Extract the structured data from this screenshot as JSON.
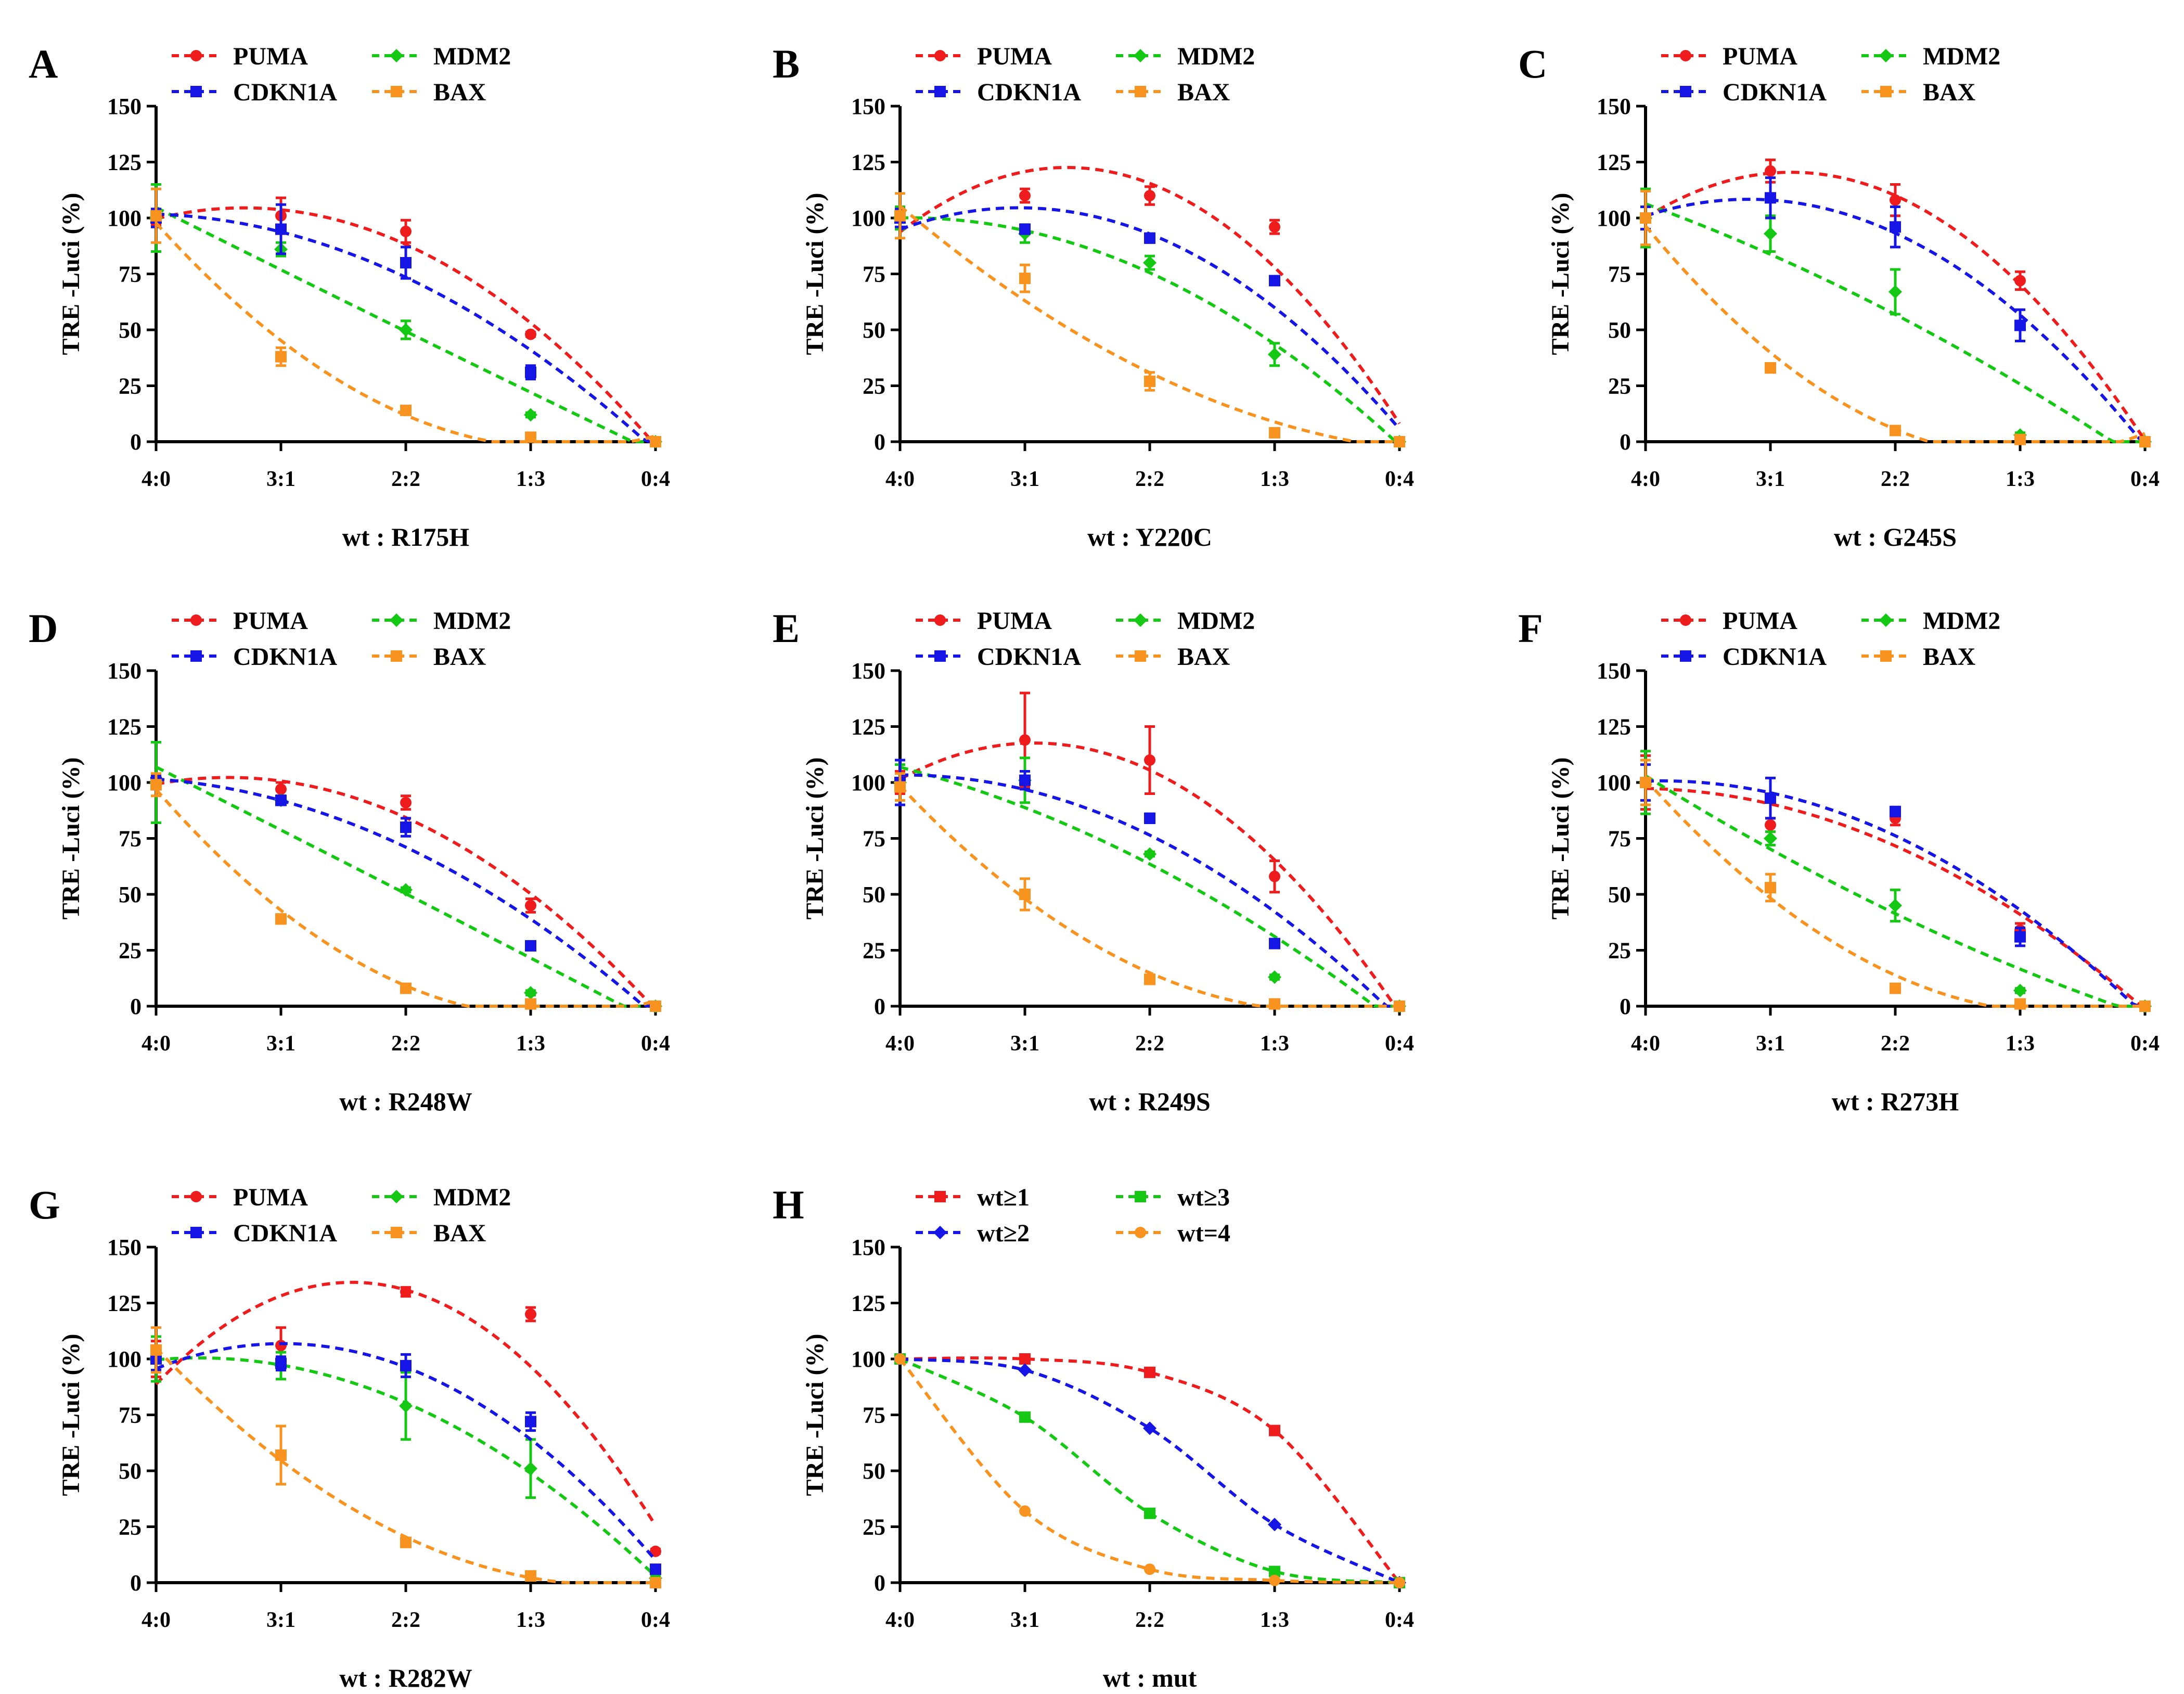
{
  "figure": {
    "x_categories": [
      "4:0",
      "3:1",
      "2:2",
      "1:3",
      "0:4"
    ],
    "ylabel": "TRE -Luci (%)",
    "yticks": [
      "0",
      "25",
      "50",
      "75",
      "100",
      "125",
      "150"
    ],
    "ylim": [
      0,
      150
    ]
  },
  "colors": {
    "red": "#ee1c1c",
    "green": "#14c814",
    "blue": "#1515e6",
    "orange": "#f7931e"
  },
  "chart_data": [
    {
      "type": "scatter",
      "panel": "A",
      "xlabel": "wt : R175H",
      "ylabel": "TRE -Luci (%)",
      "ylim": [
        0,
        150
      ],
      "categories": [
        "4:0",
        "3:1",
        "2:2",
        "1:3",
        "0:4"
      ],
      "series": [
        {
          "name": "PUMA",
          "color": "#ee1c1c",
          "marker": "circle",
          "values": [
            100,
            101,
            94,
            48,
            0
          ],
          "errors": [
            3,
            8,
            5,
            1,
            1
          ]
        },
        {
          "name": "MDM2",
          "color": "#14c814",
          "marker": "diamond",
          "values": [
            100,
            86,
            50,
            12,
            0
          ],
          "errors": [
            15,
            3,
            4,
            1,
            1
          ]
        },
        {
          "name": "CDKN1A",
          "color": "#1515e6",
          "marker": "square",
          "values": [
            100,
            95,
            80,
            31,
            0
          ],
          "errors": [
            4,
            11,
            7,
            3,
            1
          ]
        },
        {
          "name": "BAX",
          "color": "#f7931e",
          "marker": "square",
          "values": [
            101,
            38,
            14,
            2,
            0
          ],
          "errors": [
            12,
            4,
            1,
            1,
            1
          ]
        }
      ]
    },
    {
      "type": "scatter",
      "panel": "B",
      "xlabel": "wt : Y220C",
      "ylabel": "TRE -Luci (%)",
      "ylim": [
        0,
        150
      ],
      "categories": [
        "4:0",
        "3:1",
        "2:2",
        "1:3",
        "0:4"
      ],
      "series": [
        {
          "name": "PUMA",
          "color": "#ee1c1c",
          "marker": "circle",
          "values": [
            100,
            110,
            110,
            96,
            0
          ],
          "errors": [
            5,
            3,
            4,
            3,
            1
          ]
        },
        {
          "name": "MDM2",
          "color": "#14c814",
          "marker": "diamond",
          "values": [
            100,
            93,
            80,
            39,
            0
          ],
          "errors": [
            5,
            4,
            3,
            5,
            1
          ]
        },
        {
          "name": "CDKN1A",
          "color": "#1515e6",
          "marker": "square",
          "values": [
            100,
            95,
            91,
            72,
            0
          ],
          "errors": [
            4,
            2,
            2,
            1,
            1
          ]
        },
        {
          "name": "BAX",
          "color": "#f7931e",
          "marker": "square",
          "values": [
            101,
            73,
            27,
            4,
            0
          ],
          "errors": [
            10,
            6,
            4,
            1,
            1
          ]
        }
      ]
    },
    {
      "type": "scatter",
      "panel": "C",
      "xlabel": "wt : G245S",
      "ylabel": "TRE -Luci (%)",
      "ylim": [
        0,
        150
      ],
      "categories": [
        "4:0",
        "3:1",
        "2:2",
        "1:3",
        "0:4"
      ],
      "series": [
        {
          "name": "PUMA",
          "color": "#ee1c1c",
          "marker": "circle",
          "values": [
            100,
            121,
            108,
            72,
            0
          ],
          "errors": [
            5,
            5,
            7,
            4,
            1
          ]
        },
        {
          "name": "MDM2",
          "color": "#14c814",
          "marker": "diamond",
          "values": [
            100,
            93,
            67,
            3,
            0
          ],
          "errors": [
            13,
            8,
            10,
            1,
            1
          ]
        },
        {
          "name": "CDKN1A",
          "color": "#1515e6",
          "marker": "square",
          "values": [
            100,
            109,
            96,
            52,
            0
          ],
          "errors": [
            5,
            9,
            9,
            7,
            1
          ]
        },
        {
          "name": "BAX",
          "color": "#f7931e",
          "marker": "square",
          "values": [
            100,
            33,
            5,
            1,
            0
          ],
          "errors": [
            12,
            2,
            1,
            1,
            1
          ]
        }
      ]
    },
    {
      "type": "scatter",
      "panel": "D",
      "xlabel": "wt : R248W",
      "ylabel": "TRE -Luci (%)",
      "ylim": [
        0,
        150
      ],
      "categories": [
        "4:0",
        "3:1",
        "2:2",
        "1:3",
        "0:4"
      ],
      "series": [
        {
          "name": "PUMA",
          "color": "#ee1c1c",
          "marker": "circle",
          "values": [
            100,
            97,
            91,
            45,
            0
          ],
          "errors": [
            3,
            3,
            3,
            3,
            1
          ]
        },
        {
          "name": "MDM2",
          "color": "#14c814",
          "marker": "diamond",
          "values": [
            100,
            92,
            52,
            6,
            0
          ],
          "errors": [
            18,
            2,
            1,
            1,
            1
          ]
        },
        {
          "name": "CDKN1A",
          "color": "#1515e6",
          "marker": "square",
          "values": [
            100,
            92,
            80,
            27,
            0
          ],
          "errors": [
            3,
            2,
            4,
            1,
            1
          ]
        },
        {
          "name": "BAX",
          "color": "#f7931e",
          "marker": "square",
          "values": [
            99,
            39,
            8,
            1,
            0
          ],
          "errors": [
            5,
            2,
            1,
            1,
            1
          ]
        }
      ]
    },
    {
      "type": "scatter",
      "panel": "E",
      "xlabel": "wt : R249S",
      "ylabel": "TRE -Luci (%)",
      "ylim": [
        0,
        150
      ],
      "categories": [
        "4:0",
        "3:1",
        "2:2",
        "1:3",
        "0:4"
      ],
      "series": [
        {
          "name": "PUMA",
          "color": "#ee1c1c",
          "marker": "circle",
          "values": [
            100,
            119,
            110,
            58,
            0
          ],
          "errors": [
            5,
            21,
            15,
            7,
            1
          ]
        },
        {
          "name": "MDM2",
          "color": "#14c814",
          "marker": "diamond",
          "values": [
            100,
            101,
            68,
            13,
            0
          ],
          "errors": [
            8,
            10,
            1,
            1,
            1
          ]
        },
        {
          "name": "CDKN1A",
          "color": "#1515e6",
          "marker": "square",
          "values": [
            100,
            101,
            84,
            28,
            0
          ],
          "errors": [
            10,
            4,
            2,
            1,
            1
          ]
        },
        {
          "name": "BAX",
          "color": "#f7931e",
          "marker": "square",
          "values": [
            98,
            50,
            12,
            1,
            0
          ],
          "errors": [
            6,
            7,
            2,
            1,
            1
          ]
        }
      ]
    },
    {
      "type": "scatter",
      "panel": "F",
      "xlabel": "wt : R273H",
      "ylabel": "TRE -Luci (%)",
      "ylim": [
        0,
        150
      ],
      "categories": [
        "4:0",
        "3:1",
        "2:2",
        "1:3",
        "0:4"
      ],
      "series": [
        {
          "name": "PUMA",
          "color": "#ee1c1c",
          "marker": "circle",
          "values": [
            100,
            81,
            84,
            34,
            0
          ],
          "errors": [
            12,
            3,
            3,
            3,
            1
          ]
        },
        {
          "name": "MDM2",
          "color": "#14c814",
          "marker": "diamond",
          "values": [
            100,
            75,
            45,
            7,
            0
          ],
          "errors": [
            14,
            3,
            7,
            1,
            1
          ]
        },
        {
          "name": "CDKN1A",
          "color": "#1515e6",
          "marker": "square",
          "values": [
            100,
            93,
            87,
            31,
            0
          ],
          "errors": [
            8,
            9,
            2,
            4,
            1
          ]
        },
        {
          "name": "BAX",
          "color": "#f7931e",
          "marker": "square",
          "values": [
            100,
            53,
            8,
            1,
            0
          ],
          "errors": [
            10,
            6,
            1,
            1,
            1
          ]
        }
      ]
    },
    {
      "type": "scatter",
      "panel": "G",
      "xlabel": "wt : R282W",
      "ylabel": "TRE -Luci (%)",
      "ylim": [
        0,
        150
      ],
      "categories": [
        "4:0",
        "3:1",
        "2:2",
        "1:3",
        "0:4"
      ],
      "series": [
        {
          "name": "PUMA",
          "color": "#ee1c1c",
          "marker": "circle",
          "values": [
            100,
            106,
            130,
            120,
            14
          ],
          "errors": [
            8,
            8,
            2,
            3,
            1
          ]
        },
        {
          "name": "MDM2",
          "color": "#14c814",
          "marker": "diamond",
          "values": [
            100,
            97,
            79,
            51,
            2
          ],
          "errors": [
            10,
            6,
            15,
            13,
            1
          ]
        },
        {
          "name": "CDKN1A",
          "color": "#1515e6",
          "marker": "square",
          "values": [
            100,
            98,
            97,
            72,
            6
          ],
          "errors": [
            5,
            3,
            5,
            4,
            1
          ]
        },
        {
          "name": "BAX",
          "color": "#f7931e",
          "marker": "square",
          "values": [
            104,
            57,
            18,
            3,
            0
          ],
          "errors": [
            10,
            13,
            2,
            1,
            1
          ]
        }
      ]
    },
    {
      "type": "line",
      "panel": "H",
      "xlabel": "wt : mut",
      "ylabel": "TRE -Luci (%)",
      "ylim": [
        0,
        150
      ],
      "categories": [
        "4:0",
        "3:1",
        "2:2",
        "1:3",
        "0:4"
      ],
      "series": [
        {
          "name": "wt≥1",
          "color": "#ee1c1c",
          "marker": "square",
          "values": [
            100,
            100,
            94,
            68,
            0
          ]
        },
        {
          "name": "wt≥3",
          "color": "#14c814",
          "marker": "square",
          "values": [
            100,
            74,
            31,
            5,
            0
          ]
        },
        {
          "name": "wt≥2",
          "color": "#1515e6",
          "marker": "diamond",
          "values": [
            100,
            95,
            69,
            26,
            0
          ]
        },
        {
          "name": "wt=4",
          "color": "#f7931e",
          "marker": "circle",
          "values": [
            100,
            32,
            6,
            1,
            0
          ]
        }
      ]
    }
  ]
}
